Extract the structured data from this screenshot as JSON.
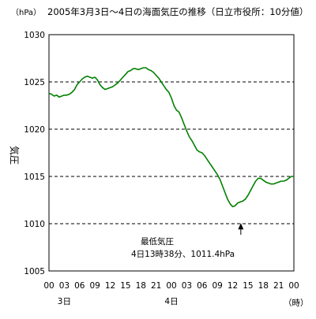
{
  "chart_data": {
    "type": "line",
    "title": "2005年3月3日～4日の海面気圧の推移（日立市役所：10分値）",
    "y_unit": "（hPa）",
    "ylabel": "気圧",
    "x_unit": "（時）",
    "ylim": [
      1005,
      1030
    ],
    "yticks": [
      1005,
      1010,
      1015,
      1020,
      1025,
      1030
    ],
    "grid_y": [
      1010,
      1015,
      1020,
      1025
    ],
    "xlim_hours": [
      0,
      48
    ],
    "xticks": [
      "00",
      "03",
      "06",
      "09",
      "12",
      "15",
      "18",
      "21",
      "00",
      "03",
      "06",
      "09",
      "12",
      "15",
      "18",
      "21",
      "00"
    ],
    "day_labels": [
      {
        "label": "3日",
        "hour": 3
      },
      {
        "label": "4日",
        "hour": 24
      }
    ],
    "series": [
      {
        "color": "#008000",
        "points": [
          [
            0.0,
            1023.8
          ],
          [
            0.5,
            1023.7
          ],
          [
            1.0,
            1023.5
          ],
          [
            1.5,
            1023.6
          ],
          [
            2.0,
            1023.4
          ],
          [
            2.5,
            1023.5
          ],
          [
            3.0,
            1023.6
          ],
          [
            3.5,
            1023.6
          ],
          [
            4.0,
            1023.7
          ],
          [
            4.5,
            1023.9
          ],
          [
            5.0,
            1024.2
          ],
          [
            5.5,
            1024.7
          ],
          [
            6.0,
            1025.0
          ],
          [
            6.5,
            1025.3
          ],
          [
            7.0,
            1025.5
          ],
          [
            7.5,
            1025.6
          ],
          [
            8.0,
            1025.5
          ],
          [
            8.5,
            1025.4
          ],
          [
            9.0,
            1025.5
          ],
          [
            9.5,
            1025.2
          ],
          [
            10.0,
            1024.7
          ],
          [
            10.5,
            1024.4
          ],
          [
            11.0,
            1024.2
          ],
          [
            11.5,
            1024.3
          ],
          [
            12.0,
            1024.4
          ],
          [
            12.5,
            1024.5
          ],
          [
            13.0,
            1024.7
          ],
          [
            13.5,
            1024.9
          ],
          [
            14.0,
            1025.2
          ],
          [
            14.5,
            1025.5
          ],
          [
            15.0,
            1025.8
          ],
          [
            15.5,
            1026.1
          ],
          [
            16.0,
            1026.2
          ],
          [
            16.5,
            1026.4
          ],
          [
            17.0,
            1026.4
          ],
          [
            17.5,
            1026.3
          ],
          [
            18.0,
            1026.4
          ],
          [
            18.5,
            1026.5
          ],
          [
            19.0,
            1026.5
          ],
          [
            19.5,
            1026.3
          ],
          [
            20.0,
            1026.2
          ],
          [
            20.5,
            1026.0
          ],
          [
            21.0,
            1025.7
          ],
          [
            21.5,
            1025.4
          ],
          [
            22.0,
            1025.0
          ],
          [
            22.5,
            1024.6
          ],
          [
            23.0,
            1024.2
          ],
          [
            23.5,
            1023.9
          ],
          [
            24.0,
            1023.3
          ],
          [
            24.5,
            1022.5
          ],
          [
            25.0,
            1022.0
          ],
          [
            25.5,
            1021.8
          ],
          [
            26.0,
            1021.2
          ],
          [
            26.5,
            1020.5
          ],
          [
            27.0,
            1019.8
          ],
          [
            27.5,
            1019.2
          ],
          [
            28.0,
            1018.8
          ],
          [
            28.5,
            1018.3
          ],
          [
            29.0,
            1017.8
          ],
          [
            29.5,
            1017.6
          ],
          [
            30.0,
            1017.5
          ],
          [
            30.5,
            1017.2
          ],
          [
            31.0,
            1016.8
          ],
          [
            31.5,
            1016.4
          ],
          [
            32.0,
            1016.0
          ],
          [
            32.5,
            1015.6
          ],
          [
            33.0,
            1015.2
          ],
          [
            33.5,
            1014.7
          ],
          [
            34.0,
            1014.0
          ],
          [
            34.5,
            1013.3
          ],
          [
            35.0,
            1012.6
          ],
          [
            35.5,
            1012.1
          ],
          [
            36.0,
            1011.8
          ],
          [
            36.5,
            1011.9
          ],
          [
            37.0,
            1012.2
          ],
          [
            37.5,
            1012.3
          ],
          [
            38.0,
            1012.4
          ],
          [
            38.5,
            1012.6
          ],
          [
            39.0,
            1013.0
          ],
          [
            39.5,
            1013.5
          ],
          [
            40.0,
            1014.0
          ],
          [
            40.5,
            1014.5
          ],
          [
            41.0,
            1014.8
          ],
          [
            41.5,
            1014.8
          ],
          [
            42.0,
            1014.6
          ],
          [
            42.5,
            1014.4
          ],
          [
            43.0,
            1014.3
          ],
          [
            43.5,
            1014.2
          ],
          [
            44.0,
            1014.2
          ],
          [
            44.5,
            1014.3
          ],
          [
            45.0,
            1014.4
          ],
          [
            45.5,
            1014.5
          ],
          [
            46.0,
            1014.5
          ],
          [
            46.5,
            1014.6
          ],
          [
            47.0,
            1014.8
          ],
          [
            47.5,
            1015.0
          ],
          [
            48.0,
            1015.0
          ]
        ]
      }
    ],
    "annotation": {
      "line1": "最低気圧",
      "line2": "4日13時38分、1011.4hPa",
      "arrow_hour": 37.6,
      "arrow_value": 1011.4
    }
  }
}
